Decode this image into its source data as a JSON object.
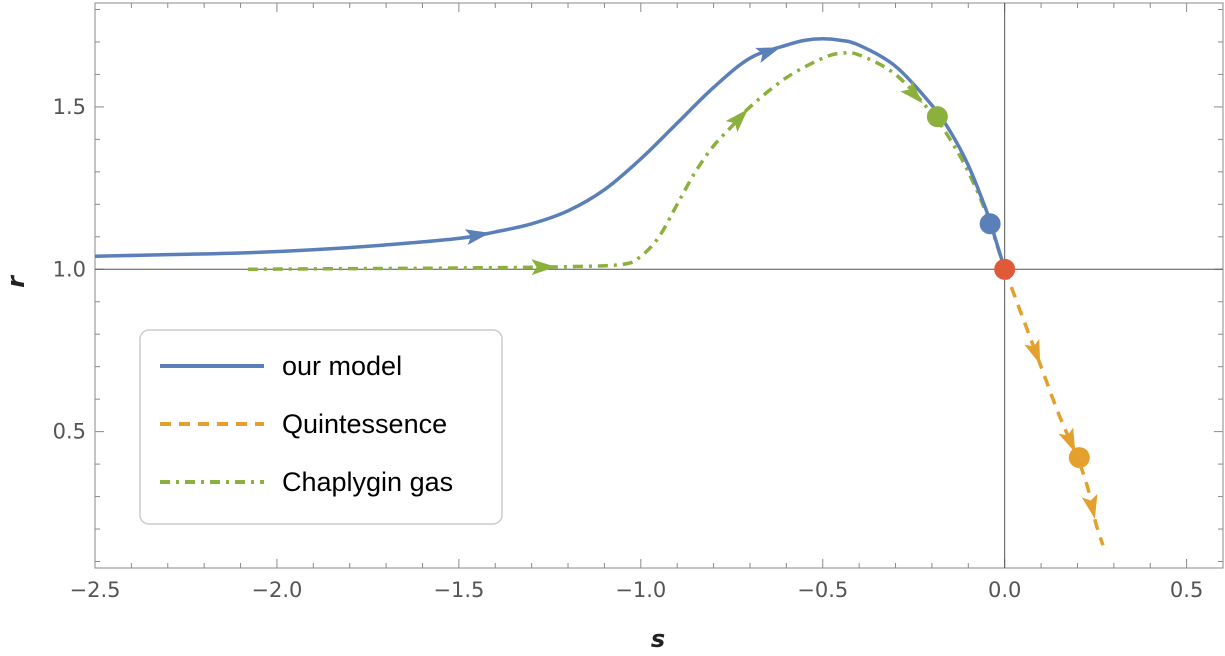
{
  "chart_data": {
    "type": "line",
    "title": "",
    "xlabel": "s",
    "ylabel": "r",
    "xlim": [
      -2.5,
      0.6
    ],
    "ylim": [
      0.08,
      1.82
    ],
    "x_ticks": [
      "-2.5",
      "-2.0",
      "-1.5",
      "-1.0",
      "-0.5",
      "0.0",
      "0.5"
    ],
    "x_tick_values": [
      -2.5,
      -2.0,
      -1.5,
      -1.0,
      -0.5,
      0.0,
      0.5
    ],
    "y_ticks": [
      "0.5",
      "1.0",
      "1.5"
    ],
    "y_tick_values": [
      0.5,
      1.0,
      1.5
    ],
    "reference_lines": {
      "x": 0.0,
      "y": 1.0
    },
    "legend_position": "lower-left",
    "series": [
      {
        "name": "our model",
        "color": "#5b7fb8",
        "style": "solid",
        "x": [
          -2.5,
          -2.3,
          -2.1,
          -1.9,
          -1.7,
          -1.5,
          -1.4,
          -1.3,
          -1.2,
          -1.1,
          -1.0,
          -0.9,
          -0.8,
          -0.7,
          -0.6,
          -0.55,
          -0.5,
          -0.45,
          -0.4,
          -0.3,
          -0.2,
          -0.15,
          -0.1,
          -0.05,
          -0.03,
          0.0
        ],
        "y": [
          1.04,
          1.045,
          1.05,
          1.06,
          1.075,
          1.095,
          1.115,
          1.14,
          1.18,
          1.245,
          1.34,
          1.45,
          1.56,
          1.65,
          1.69,
          1.705,
          1.71,
          1.705,
          1.69,
          1.625,
          1.505,
          1.425,
          1.32,
          1.18,
          1.11,
          1.0
        ],
        "arrows_at_x": [
          -1.45,
          -0.65
        ],
        "end_point": {
          "x": -0.04,
          "y": 1.14
        }
      },
      {
        "name": "Quintessence",
        "color": "#e3a02c",
        "style": "dashed",
        "x": [
          0.0,
          0.05,
          0.1,
          0.15,
          0.2,
          0.23,
          0.25,
          0.27
        ],
        "y": [
          1.0,
          0.85,
          0.7,
          0.55,
          0.42,
          0.32,
          0.22,
          0.15
        ],
        "arrows_at_x": [
          0.085,
          0.18,
          0.24
        ],
        "end_point": {
          "x": 0.205,
          "y": 0.42
        }
      },
      {
        "name": "Chaplygin gas",
        "color": "#8bb03c",
        "style": "dash-dot",
        "x": [
          -2.08,
          -1.8,
          -1.6,
          -1.4,
          -1.2,
          -1.05,
          -1.0,
          -0.95,
          -0.9,
          -0.85,
          -0.8,
          -0.75,
          -0.7,
          -0.6,
          -0.5,
          -0.45,
          -0.4,
          -0.3,
          -0.2,
          -0.15,
          -0.1,
          -0.05,
          0.0
        ],
        "y": [
          1.0,
          1.002,
          1.003,
          1.005,
          1.008,
          1.015,
          1.04,
          1.1,
          1.2,
          1.3,
          1.38,
          1.44,
          1.5,
          1.59,
          1.65,
          1.665,
          1.66,
          1.6,
          1.48,
          1.4,
          1.3,
          1.17,
          1.0
        ],
        "arrows_at_x": [
          -1.27,
          -0.73,
          -0.25
        ],
        "end_point": {
          "x": -0.185,
          "y": 1.47
        }
      }
    ],
    "common_point": {
      "x": 0.0,
      "y": 1.0,
      "color": "#e05a3a"
    }
  }
}
